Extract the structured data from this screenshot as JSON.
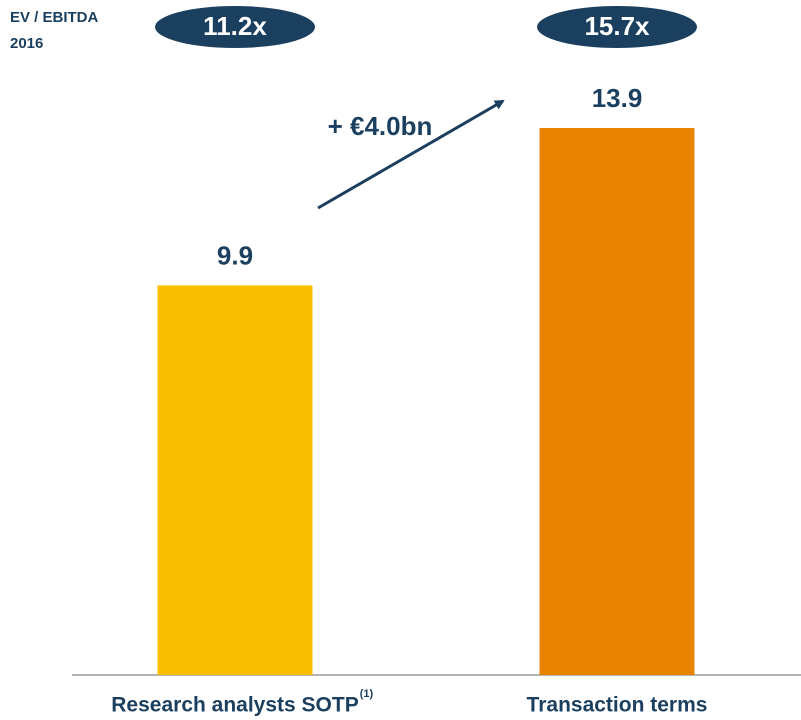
{
  "chart_data": {
    "type": "bar",
    "categories": [
      "Research analysts SOTP",
      "Transaction terms"
    ],
    "category_note": "(1)",
    "values": [
      9.9,
      13.9
    ],
    "colors": [
      "#fbbf00",
      "#e88300"
    ],
    "metric_label": [
      "EV / EBITDA",
      "2016"
    ],
    "multiples": [
      "11.2x",
      "15.7x"
    ],
    "delta_label": "+ €4.0bn"
  }
}
